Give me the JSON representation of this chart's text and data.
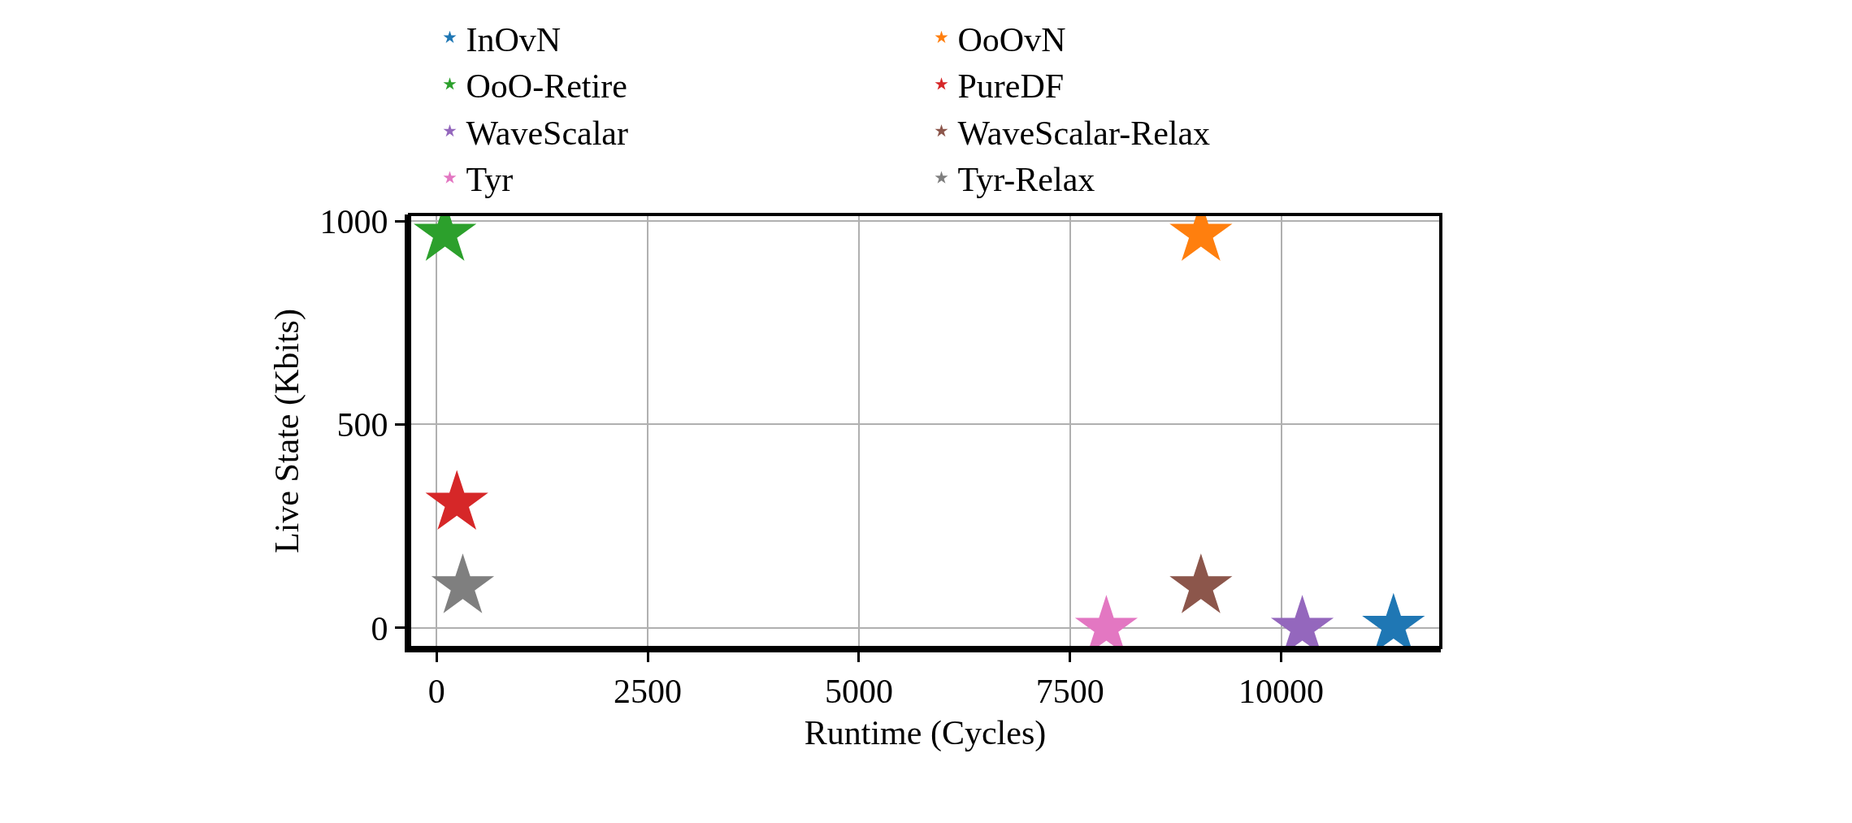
{
  "chart_data": {
    "type": "scatter",
    "xlabel": "Runtime (Cycles)",
    "ylabel": "Live State (Kbits)",
    "series": [
      {
        "name": "InOvN",
        "color": "#1f77b4",
        "x": [
          11330
        ],
        "values": [
          5
        ]
      },
      {
        "name": "OoOvN",
        "color": "#ff7f0e",
        "x": [
          9050
        ],
        "values": [
          968
        ]
      },
      {
        "name": "OoO-Retire",
        "color": "#2ca02c",
        "x": [
          100
        ],
        "values": [
          968
        ]
      },
      {
        "name": "PureDF",
        "color": "#d62728",
        "x": [
          240
        ],
        "values": [
          307
        ]
      },
      {
        "name": "WaveScalar",
        "color": "#9467bd",
        "x": [
          10250
        ],
        "values": [
          0
        ]
      },
      {
        "name": "WaveScalar-Relax",
        "color": "#8c564b",
        "x": [
          9050
        ],
        "values": [
          102
        ]
      },
      {
        "name": "Tyr",
        "color": "#e377c2",
        "x": [
          7930
        ],
        "values": [
          0
        ]
      },
      {
        "name": "Tyr-Relax",
        "color": "#7f7f7f",
        "x": [
          310
        ],
        "values": [
          102
        ]
      }
    ],
    "xlim": [
      -320,
      11890
    ],
    "ylim": [
      -48,
      1016
    ],
    "xticks": [
      0,
      2500,
      5000,
      7500,
      10000
    ],
    "yticks": [
      0,
      500,
      1000
    ],
    "grid": true,
    "legend": "top",
    "marker": "star"
  }
}
